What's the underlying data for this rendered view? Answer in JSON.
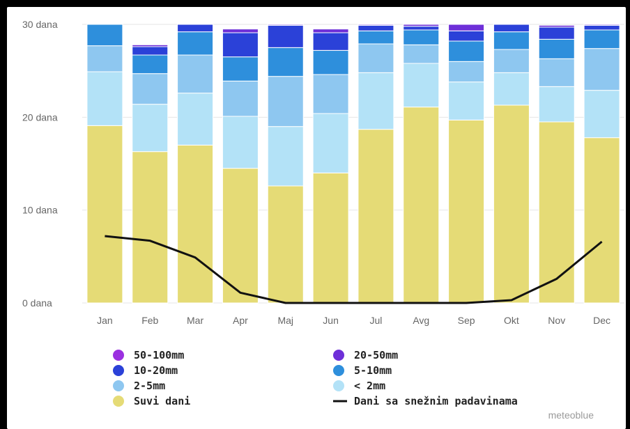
{
  "chart_data": {
    "type": "bar",
    "stacked": true,
    "categories": [
      "Jan",
      "Feb",
      "Mar",
      "Apr",
      "Maj",
      "Jun",
      "Jul",
      "Avg",
      "Sep",
      "Okt",
      "Nov",
      "Dec"
    ],
    "ytick_labels": [
      "0 dana",
      "10 dana",
      "20 dana",
      "30 dana"
    ],
    "ylim": [
      0,
      30
    ],
    "series": [
      {
        "name": "Suvi dani",
        "color": "#e5db76",
        "values": [
          19.1,
          16.3,
          17.0,
          14.5,
          12.6,
          14.0,
          18.7,
          21.1,
          19.7,
          21.3,
          19.5,
          17.8
        ]
      },
      {
        "name": "< 2mm",
        "color": "#b3e2f7",
        "values": [
          5.8,
          5.1,
          5.6,
          5.6,
          6.4,
          6.4,
          6.1,
          4.7,
          4.1,
          3.5,
          3.8,
          5.1
        ]
      },
      {
        "name": "2-5mm",
        "color": "#8ec7f0",
        "values": [
          2.8,
          3.3,
          4.1,
          3.8,
          5.4,
          4.2,
          3.1,
          2.0,
          2.2,
          2.5,
          3.0,
          4.5
        ]
      },
      {
        "name": "5-10mm",
        "color": "#2e8fdc",
        "values": [
          2.3,
          2.0,
          2.5,
          2.6,
          3.1,
          2.6,
          1.4,
          1.6,
          2.2,
          1.9,
          2.1,
          2.0
        ]
      },
      {
        "name": "10-20mm",
        "color": "#2b41d8",
        "values": [
          0.0,
          0.9,
          0.8,
          2.6,
          2.4,
          1.9,
          0.6,
          0.4,
          1.1,
          0.8,
          1.3,
          0.5
        ]
      },
      {
        "name": "20-50mm",
        "color": "#6e2fd8",
        "values": [
          0.0,
          0.2,
          0.0,
          0.4,
          0.1,
          0.4,
          0.1,
          0.2,
          0.7,
          0.0,
          0.2,
          0.1
        ]
      },
      {
        "name": "50-100mm",
        "color": "#9b30e0",
        "values": [
          0,
          0,
          0,
          0,
          0,
          0,
          0,
          0,
          0,
          0,
          0,
          0
        ]
      }
    ],
    "line_series": {
      "name": "Dani sa snežnim padavinama",
      "color": "#111111",
      "values": [
        7.2,
        6.7,
        4.9,
        1.1,
        0.0,
        0.0,
        0.0,
        0.0,
        0.0,
        0.3,
        2.6,
        6.6
      ]
    },
    "legend": [
      {
        "label": "50-100mm",
        "color": "#9b30e0",
        "kind": "dot"
      },
      {
        "label": "20-50mm",
        "color": "#6e2fd8",
        "kind": "dot"
      },
      {
        "label": "10-20mm",
        "color": "#2b41d8",
        "kind": "dot"
      },
      {
        "label": "5-10mm",
        "color": "#2e8fdc",
        "kind": "dot"
      },
      {
        "label": "2-5mm",
        "color": "#8ec7f0",
        "kind": "dot"
      },
      {
        "label": "< 2mm",
        "color": "#b3e2f7",
        "kind": "dot"
      },
      {
        "label": "Suvi dani",
        "color": "#e5db76",
        "kind": "dot"
      },
      {
        "label": "Dani sa snežnim padavinama",
        "color": "#111111",
        "kind": "line"
      }
    ],
    "legend_placement": "bottom",
    "grid": true,
    "credit": "meteoblue"
  }
}
